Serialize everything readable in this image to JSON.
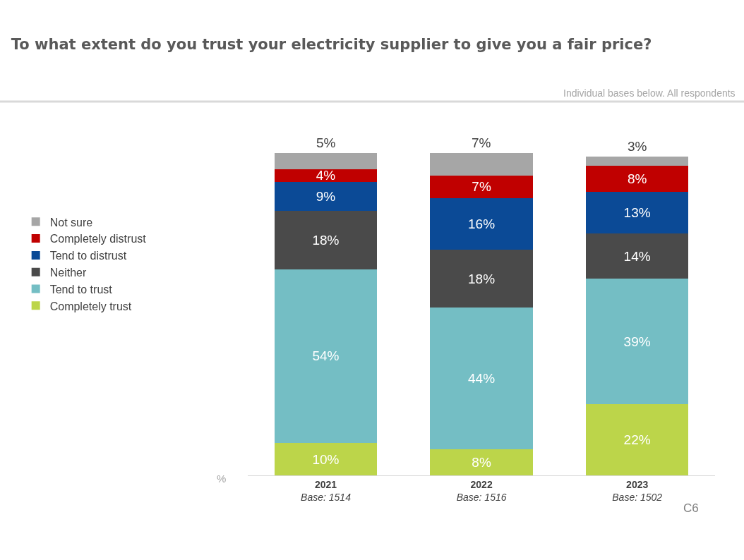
{
  "chart_data": {
    "type": "bar",
    "stacked": true,
    "title": "To what extent do you trust your electricity supplier to give you a fair price?",
    "subtitle": "Individual bases below. All respondents",
    "categories": [
      "2021\nBase: 1514",
      "2022\nBase: 1516",
      "2023\nBase: 1502"
    ],
    "series": [
      {
        "name": "Completely trust",
        "color": "#bcd54a",
        "values": [
          10,
          8,
          22
        ],
        "value_labels": [
          "10%",
          "8%",
          "22%"
        ]
      },
      {
        "name": "Tend to trust",
        "color": "#74bec4",
        "values": [
          54,
          44,
          39
        ],
        "value_labels": [
          "54%",
          "44%",
          "39%"
        ]
      },
      {
        "name": "Neither",
        "color": "#4a4a4a",
        "values": [
          18,
          18,
          14
        ],
        "value_labels": [
          "18%",
          "18%",
          "14%"
        ]
      },
      {
        "name": "Tend to distrust",
        "color": "#0b4a96",
        "values": [
          9,
          16,
          13
        ],
        "value_labels": [
          "9%",
          "16%",
          "13%"
        ]
      },
      {
        "name": "Completely distrust",
        "color": "#c00000",
        "values": [
          4,
          7,
          8
        ],
        "value_labels": [
          "4%",
          "7%",
          "8%"
        ]
      },
      {
        "name": "Not sure",
        "color": "#a6a6a6",
        "values": [
          5,
          7,
          3
        ],
        "value_labels": [
          "5%",
          "7%",
          "3%"
        ]
      }
    ],
    "legend": "left",
    "tick_labels": "x",
    "annotations": [
      "%",
      "C6"
    ]
  }
}
